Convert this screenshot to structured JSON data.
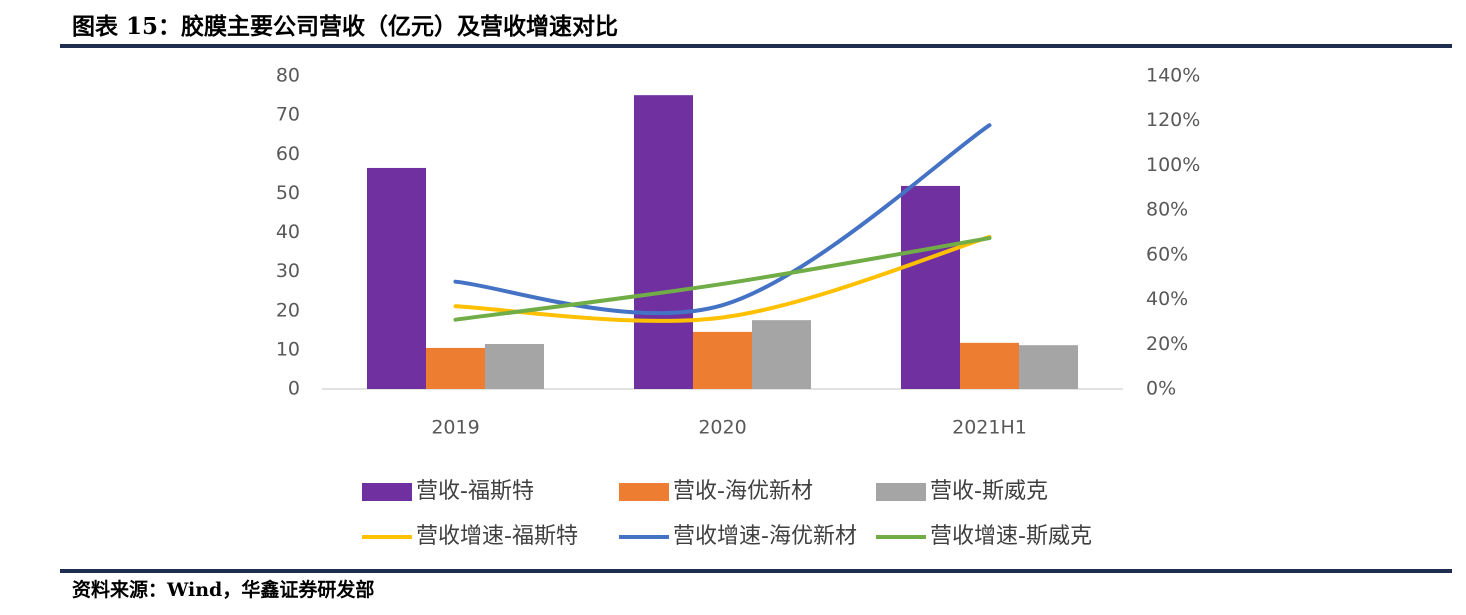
{
  "title": "图表 15：胶膜主要公司营收（亿元）及营收增速对比",
  "source": "资料来源：Wind，华鑫证券研发部",
  "chart_data": {
    "type": "bar",
    "categories": [
      "2019",
      "2020",
      "2021H1"
    ],
    "ylim": [
      0,
      80
    ],
    "yticks": [
      0,
      10,
      20,
      30,
      40,
      50,
      60,
      70,
      80
    ],
    "y2lim": [
      0,
      140
    ],
    "y2ticks": [
      {
        "value": 0,
        "label": "0%"
      },
      {
        "value": 20,
        "label": "20%"
      },
      {
        "value": 40,
        "label": "40%"
      },
      {
        "value": 60,
        "label": "60%"
      },
      {
        "value": 80,
        "label": "80%"
      },
      {
        "value": 100,
        "label": "100%"
      },
      {
        "value": 120,
        "label": "120%"
      },
      {
        "value": 140,
        "label": "140%"
      }
    ],
    "legend": "bottom",
    "series": [
      {
        "name": "营收-福斯特",
        "type": "bar",
        "color": "#7030a0",
        "values": [
          56.5,
          75.1,
          51.9
        ]
      },
      {
        "name": "营收-海优新材",
        "type": "bar",
        "color": "#ed7d31",
        "values": [
          10.5,
          14.6,
          11.8
        ]
      },
      {
        "name": "营收-斯威克",
        "type": "bar",
        "color": "#a5a5a5",
        "values": [
          11.5,
          17.6,
          11.2
        ]
      },
      {
        "name": "营收增速-福斯特",
        "type": "line",
        "axis": "y2",
        "color": "#ffc000",
        "values": [
          37,
          32,
          68
        ]
      },
      {
        "name": "营收增速-海优新材",
        "type": "line",
        "axis": "y2",
        "color": "#4472c4",
        "values": [
          48,
          37.5,
          118
        ]
      },
      {
        "name": "营收增速-斯威克",
        "type": "line",
        "axis": "y2",
        "color": "#70ad47",
        "values": [
          31,
          47,
          67.5
        ]
      }
    ]
  }
}
